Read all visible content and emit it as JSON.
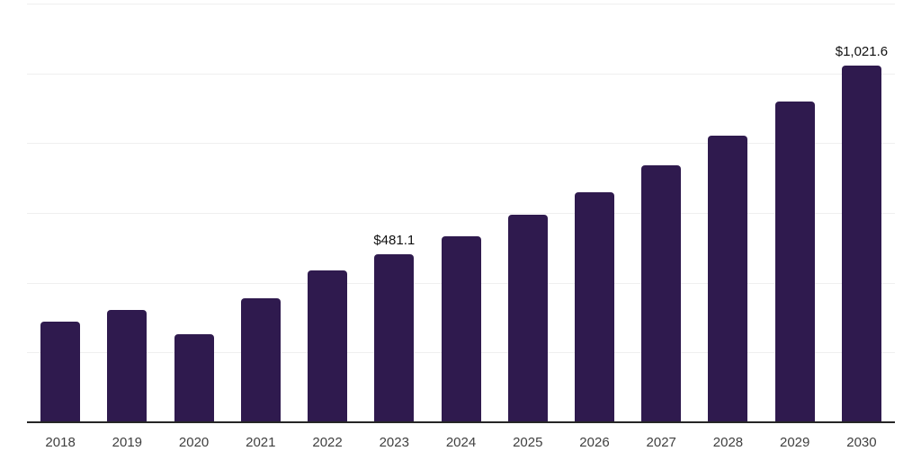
{
  "chart_data": {
    "type": "bar",
    "title": "",
    "xlabel": "",
    "ylabel": "",
    "categories": [
      "2018",
      "2019",
      "2020",
      "2021",
      "2022",
      "2023",
      "2024",
      "2025",
      "2026",
      "2027",
      "2028",
      "2029",
      "2030"
    ],
    "values": [
      289,
      322,
      252,
      355,
      434,
      481.1,
      533,
      594,
      659,
      736,
      822,
      919,
      1021.6
    ],
    "bar_labels": [
      "",
      "",
      "",
      "",
      "",
      "$481.1",
      "",
      "",
      "",
      "",
      "",
      "",
      "$1,021.6"
    ],
    "ylim": [
      0,
      1200
    ],
    "gridline_values": [
      200,
      400,
      600,
      800,
      1000,
      1200
    ],
    "grid": "horizontal-unlabeled",
    "legend": "none",
    "colors": {
      "bar": "#2f1a4e",
      "gridline": "#efefef",
      "axis_line": "#262626",
      "tick_label": "#404040",
      "data_label": "#111111",
      "background": "#ffffff"
    }
  }
}
